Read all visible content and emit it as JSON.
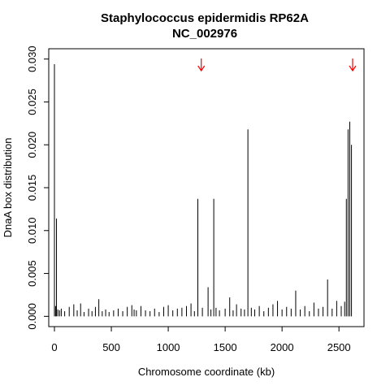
{
  "chart_data": {
    "type": "bar",
    "title": "Staphylococcus epidermidis RP62A",
    "subtitle": "NC_002976",
    "xlabel": "Chromosome coordinate (kb)",
    "ylabel": "DnaA box distribution",
    "xlim": [
      -50,
      2720
    ],
    "ylim": [
      -0.0012,
      0.0312
    ],
    "x_ticks": [
      0,
      500,
      1000,
      1500,
      2000,
      2500
    ],
    "y_ticks": [
      0.0,
      0.005,
      0.01,
      0.015,
      0.02,
      0.025,
      0.03
    ],
    "y_tick_labels": [
      "0.000",
      "0.005",
      "0.010",
      "0.015",
      "0.020",
      "0.025",
      "0.030"
    ],
    "grid": false,
    "series": [
      {
        "color": "#000000",
        "x": [
          0,
          10,
          18,
          30,
          45,
          60,
          90,
          130,
          170,
          200,
          230,
          260,
          300,
          330,
          360,
          390,
          420,
          450,
          480,
          520,
          560,
          600,
          640,
          680,
          700,
          720,
          760,
          800,
          840,
          880,
          920,
          960,
          1000,
          1040,
          1080,
          1120,
          1160,
          1200,
          1230,
          1260,
          1300,
          1350,
          1375,
          1400,
          1420,
          1450,
          1500,
          1540,
          1570,
          1600,
          1640,
          1670,
          1700,
          1730,
          1760,
          1800,
          1840,
          1880,
          1920,
          1960,
          2000,
          2040,
          2080,
          2120,
          2160,
          2200,
          2240,
          2280,
          2320,
          2360,
          2400,
          2440,
          2480,
          2520,
          2550,
          2565,
          2580,
          2595,
          2610
        ],
        "values": [
          0.0294,
          0.0012,
          0.0114,
          0.0008,
          0.0007,
          0.0009,
          0.0006,
          0.0011,
          0.0014,
          0.0007,
          0.0015,
          0.0005,
          0.0009,
          0.0006,
          0.0011,
          0.002,
          0.0006,
          0.0008,
          0.0005,
          0.0007,
          0.0009,
          0.0006,
          0.0011,
          0.0013,
          0.0008,
          0.0007,
          0.0012,
          0.0007,
          0.0006,
          0.0009,
          0.0005,
          0.0011,
          0.0013,
          0.0007,
          0.0009,
          0.001,
          0.0012,
          0.0015,
          0.0006,
          0.0137,
          0.001,
          0.0034,
          0.0008,
          0.0137,
          0.001,
          0.0007,
          0.0009,
          0.0022,
          0.0007,
          0.0014,
          0.0009,
          0.0008,
          0.0218,
          0.001,
          0.0008,
          0.0012,
          0.0006,
          0.001,
          0.0014,
          0.0018,
          0.0008,
          0.0011,
          0.0009,
          0.003,
          0.0008,
          0.0012,
          0.0006,
          0.0016,
          0.0009,
          0.0011,
          0.0043,
          0.0009,
          0.0018,
          0.0012,
          0.0017,
          0.0137,
          0.0218,
          0.0227,
          0.02
        ]
      }
    ],
    "arrows": [
      {
        "x": 1290,
        "color": "#ff0000"
      },
      {
        "x": 2620,
        "color": "#ff0000"
      }
    ]
  }
}
